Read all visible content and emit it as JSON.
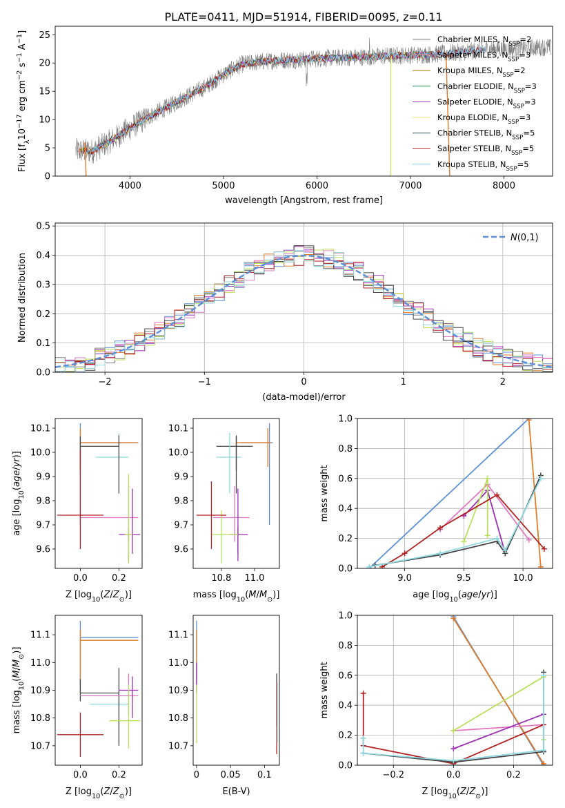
{
  "title": "PLATE=0411, MJD=51914, FIBERID=0095, z=0.11",
  "chart_data": [
    {
      "id": "spectrum",
      "type": "line",
      "xlabel": "wavelength [Angstrom, rest frame]",
      "ylabel": "Flux [f_λ 10^-17 erg cm^-2 s^-1 A^-1]",
      "xlim": [
        3200,
        8520
      ],
      "ylim": [
        0,
        26.5
      ],
      "xticks": [
        4000,
        5000,
        6000,
        7000,
        8000
      ],
      "yticks": [
        0,
        5,
        10,
        15,
        20,
        25
      ],
      "legend": "right",
      "data_color": "#7f7f7f",
      "data_continuum": [
        [
          3420,
          4.5
        ],
        [
          3600,
          4.4
        ],
        [
          3800,
          6.3
        ],
        [
          4000,
          8.5
        ],
        [
          4200,
          10.5
        ],
        [
          4400,
          12.2
        ],
        [
          4600,
          14.0
        ],
        [
          4800,
          15.7
        ],
        [
          5000,
          18.0
        ],
        [
          5200,
          19.8
        ],
        [
          5400,
          20.2
        ],
        [
          5600,
          20.5
        ],
        [
          5800,
          20.6
        ],
        [
          6000,
          20.8
        ],
        [
          6200,
          20.9
        ],
        [
          6400,
          21.0
        ],
        [
          6600,
          21.1
        ],
        [
          6800,
          21.3
        ],
        [
          7000,
          21.4
        ],
        [
          7200,
          21.5
        ],
        [
          7400,
          21.7
        ],
        [
          7600,
          22.0
        ],
        [
          7800,
          22.4
        ],
        [
          8000,
          22.5
        ],
        [
          8200,
          22.6
        ],
        [
          8400,
          22.8
        ],
        [
          8500,
          22.7
        ]
      ],
      "fit_end": [
        7250,
        7400,
        7800
      ],
      "series": [
        {
          "name": "Chabrier MILES, N_SSP=2",
          "color": "#7f7f7f"
        },
        {
          "name": "Salpeter MILES, N_SSP=3",
          "color": "#f08080"
        },
        {
          "name": "Kroupa MILES, N_SSP=2",
          "color": "#b8860b"
        },
        {
          "name": "Chabrier ELODIE, N_SSP=3",
          "color": "#2e8b57"
        },
        {
          "name": "Salpeter ELODIE, N_SSP=3",
          "color": "#9932cc"
        },
        {
          "name": "Kroupa ELODIE, N_SSP=3",
          "color": "#f0e68c"
        },
        {
          "name": "Chabrier STELIB, N_SSP=5",
          "color": "#2f4f4f"
        },
        {
          "name": "Salpeter STELIB, N_SSP=5",
          "color": "#b22222"
        },
        {
          "name": "Kroupa STELIB, N_SSP=5",
          "color": "#87cefa"
        }
      ]
    },
    {
      "id": "residuals",
      "type": "histogram",
      "xlabel": "(data-model)/error",
      "ylabel": "Normed distribution",
      "xlim": [
        -2.5,
        2.5
      ],
      "ylim": [
        0,
        0.51
      ],
      "xticks": [
        -2,
        -1,
        0,
        1,
        2
      ],
      "yticks": [
        0.0,
        0.1,
        0.2,
        0.3,
        0.4,
        0.5
      ],
      "grid": true,
      "legend": "top-right",
      "gaussian_label": "N(0,1)",
      "gaussian_color": "#5b8fd6",
      "bin_width": 0.1,
      "series_colors": [
        "#5b8fd6",
        "#e07b28",
        "#7f7f7f",
        "#9c2fb5",
        "#e377c2",
        "#b8e05a",
        "#444444",
        "#b22222",
        "#8fd9e0"
      ]
    },
    {
      "id": "age_vs_Z",
      "type": "errorbar",
      "xlabel": "Z [log10(Z/Z⊙)]",
      "ylabel": "age [log10(age/yr)]",
      "xlim": [
        -0.13,
        0.32
      ],
      "ylim": [
        9.52,
        10.14
      ],
      "xticks": [
        0.0,
        0.2
      ],
      "yticks": [
        9.6,
        9.7,
        9.8,
        9.9,
        10.0,
        10.1
      ],
      "points": [
        {
          "x": 0.0,
          "y": 10.04,
          "xerr": [
            0.0,
            0.3
          ],
          "yerr": [
            0.34,
            0.08
          ],
          "color": "#5b8fd6"
        },
        {
          "x": 0.0,
          "y": 10.04,
          "xerr": [
            0.0,
            0.3
          ],
          "yerr": [
            0.1,
            0.06
          ],
          "color": "#e07b28"
        },
        {
          "x": 0.0,
          "y": 10.025,
          "xerr": [
            0.0,
            0.2
          ],
          "yerr": [
            0.1,
            0.04
          ],
          "color": "#444444"
        },
        {
          "x": 0.2,
          "y": 9.98,
          "xerr": [
            0.12,
            0.05
          ],
          "yerr": [
            0.15,
            0.1
          ],
          "color": "#8fd9e0"
        },
        {
          "x": 0.2,
          "y": 9.9,
          "xerr": [
            0.0,
            0.0
          ],
          "yerr": [
            0.07,
            0.17
          ],
          "color": "#444444"
        },
        {
          "x": 0.25,
          "y": 9.73,
          "xerr": [
            0.25,
            0.05
          ],
          "yerr": [
            0.1,
            0.13
          ],
          "color": "#e377c2"
        },
        {
          "x": 0.27,
          "y": 9.73,
          "xerr": [
            0.0,
            0.0
          ],
          "yerr": [
            0.15,
            0.12
          ],
          "color": "#9c2fb5"
        },
        {
          "x": 0.25,
          "y": 9.66,
          "xerr": [
            0.05,
            0.06
          ],
          "yerr": [
            0.11,
            0.03
          ],
          "color": "#9c2fb5"
        },
        {
          "x": 0.25,
          "y": 9.66,
          "xerr": [
            0.02,
            0.02
          ],
          "yerr": [
            0.12,
            0.25
          ],
          "color": "#b8e05a"
        },
        {
          "x": 0.0,
          "y": 9.74,
          "xerr": [
            0.12,
            0.12
          ],
          "yerr": [
            0.14,
            0.27
          ],
          "color": "#b22222"
        }
      ]
    },
    {
      "id": "age_vs_mass",
      "type": "errorbar",
      "xlabel": "mass [log10(M/M⊙)]",
      "ylabel": "",
      "xlim": [
        10.63,
        11.15
      ],
      "ylim": [
        9.52,
        10.14
      ],
      "xticks": [
        10.8,
        11.0
      ],
      "yticks": [
        9.6,
        9.7,
        9.8,
        9.9,
        10.0,
        10.1
      ],
      "points": [
        {
          "x": 11.09,
          "y": 10.04,
          "xerr": [
            0.17,
            0.02
          ],
          "yerr": [
            0.34,
            0.08
          ],
          "color": "#5b8fd6"
        },
        {
          "x": 11.08,
          "y": 10.04,
          "xerr": [
            0.19,
            0.02
          ],
          "yerr": [
            0.1,
            0.06
          ],
          "color": "#e07b28"
        },
        {
          "x": 10.89,
          "y": 10.025,
          "xerr": [
            0.12,
            0.1
          ],
          "yerr": [
            0.1,
            0.04
          ],
          "color": "#444444"
        },
        {
          "x": 10.85,
          "y": 9.98,
          "xerr": [
            0.08,
            0.07
          ],
          "yerr": [
            0.15,
            0.1
          ],
          "color": "#8fd9e0"
        },
        {
          "x": 10.89,
          "y": 9.9,
          "xerr": [
            0.0,
            0.0
          ],
          "yerr": [
            0.07,
            0.17
          ],
          "color": "#444444"
        },
        {
          "x": 10.88,
          "y": 9.73,
          "xerr": [
            0.13,
            0.09
          ],
          "yerr": [
            0.1,
            0.13
          ],
          "color": "#e377c2"
        },
        {
          "x": 10.9,
          "y": 9.73,
          "xerr": [
            0.0,
            0.0
          ],
          "yerr": [
            0.15,
            0.12
          ],
          "color": "#9c2fb5"
        },
        {
          "x": 10.9,
          "y": 9.66,
          "xerr": [
            0.05,
            0.06
          ],
          "yerr": [
            0.11,
            0.03
          ],
          "color": "#9c2fb5"
        },
        {
          "x": 10.8,
          "y": 9.66,
          "xerr": [
            0.06,
            0.1
          ],
          "yerr": [
            0.12,
            0.1
          ],
          "color": "#b8e05a"
        },
        {
          "x": 10.74,
          "y": 9.74,
          "xerr": [
            0.09,
            0.09
          ],
          "yerr": [
            0.14,
            0.14
          ],
          "color": "#b22222"
        }
      ]
    },
    {
      "id": "weight_vs_age",
      "type": "line",
      "xlabel": "age [log10(age/yr)]",
      "ylabel": "mass weight",
      "xlim": [
        8.6,
        10.25
      ],
      "ylim": [
        0,
        1
      ],
      "xticks": [
        9.0,
        9.5,
        10.0
      ],
      "yticks": [
        0.0,
        0.2,
        0.4,
        0.6,
        0.8,
        1.0
      ],
      "grid": true,
      "series": [
        {
          "color": "#5b8fd6",
          "points": [
            [
              8.7,
              0.0
            ],
            [
              10.05,
              1.0
            ]
          ]
        },
        {
          "color": "#e07b28",
          "points": [
            [
              10.05,
              0.99
            ],
            [
              10.15,
              0.01
            ]
          ]
        },
        {
          "color": "#e377c2",
          "points": [
            [
              9.3,
              0.26
            ],
            [
              9.7,
              0.56
            ],
            [
              10.05,
              0.19
            ]
          ]
        },
        {
          "color": "#9c2fb5",
          "points": [
            [
              9.5,
              0.35
            ],
            [
              9.7,
              0.52
            ],
            [
              9.85,
              0.1
            ]
          ]
        },
        {
          "color": "#b8e05a",
          "points": [
            [
              9.5,
              0.18
            ],
            [
              9.7,
              0.6
            ],
            [
              9.7,
              0.22
            ]
          ]
        },
        {
          "color": "#b22222",
          "points": [
            [
              8.81,
              0.01
            ],
            [
              9.0,
              0.1
            ],
            [
              9.3,
              0.27
            ],
            [
              9.78,
              0.49
            ],
            [
              10.18,
              0.13
            ]
          ]
        },
        {
          "color": "#444444",
          "points": [
            [
              8.75,
              0.02
            ],
            [
              9.3,
              0.09
            ],
            [
              9.78,
              0.18
            ],
            [
              9.85,
              0.1
            ],
            [
              10.15,
              0.62
            ]
          ]
        },
        {
          "color": "#8fd9e0",
          "points": [
            [
              8.7,
              0.01
            ],
            [
              9.3,
              0.1
            ],
            [
              9.78,
              0.2
            ],
            [
              9.85,
              0.12
            ],
            [
              10.15,
              0.6
            ]
          ]
        }
      ]
    },
    {
      "id": "mass_vs_Z",
      "type": "errorbar",
      "xlabel": "Z [log10(Z/Z⊙)]",
      "ylabel": "mass [log10(M/M⊙)]",
      "xlim": [
        -0.13,
        0.32
      ],
      "ylim": [
        10.63,
        11.17
      ],
      "xticks": [
        0.0,
        0.2
      ],
      "yticks": [
        10.7,
        10.8,
        10.9,
        11.0,
        11.1
      ],
      "points": [
        {
          "x": 0.0,
          "y": 11.09,
          "xerr": [
            0.0,
            0.3
          ],
          "yerr": [
            0.17,
            0.06
          ],
          "color": "#5b8fd6"
        },
        {
          "x": 0.0,
          "y": 11.08,
          "xerr": [
            0.0,
            0.3
          ],
          "yerr": [
            0.19,
            0.04
          ],
          "color": "#e07b28"
        },
        {
          "x": 0.0,
          "y": 10.89,
          "xerr": [
            0.0,
            0.2
          ],
          "yerr": [
            0.03,
            0.05
          ],
          "color": "#444444"
        },
        {
          "x": 0.2,
          "y": 10.85,
          "xerr": [
            0.15,
            0.05
          ],
          "yerr": [
            0.14,
            0.07
          ],
          "color": "#8fd9e0"
        },
        {
          "x": 0.2,
          "y": 10.9,
          "xerr": [
            0.0,
            0.0
          ],
          "yerr": [
            0.2,
            0.08
          ],
          "color": "#444444"
        },
        {
          "x": 0.25,
          "y": 10.88,
          "xerr": [
            0.25,
            0.05
          ],
          "yerr": [
            0.07,
            0.08
          ],
          "color": "#e377c2"
        },
        {
          "x": 0.27,
          "y": 10.9,
          "xerr": [
            0.07,
            0.03
          ],
          "yerr": [
            0.1,
            0.05
          ],
          "color": "#9c2fb5"
        },
        {
          "x": 0.25,
          "y": 10.79,
          "xerr": [
            0.1,
            0.06
          ],
          "yerr": [
            0.1,
            0.13
          ],
          "color": "#b8e05a"
        },
        {
          "x": 0.0,
          "y": 10.74,
          "xerr": [
            0.12,
            0.12
          ],
          "yerr": [
            0.08,
            0.08
          ],
          "color": "#b22222"
        }
      ]
    },
    {
      "id": "mass_vs_EBV",
      "type": "errorbar",
      "xlabel": "E(B-V)",
      "ylabel": "",
      "xlim": [
        -0.005,
        0.122
      ],
      "ylim": [
        10.63,
        11.17
      ],
      "xticks": [
        0.0,
        0.05,
        0.1
      ],
      "yticks": [
        10.7,
        10.8,
        10.9,
        11.0,
        11.1
      ],
      "points": [
        {
          "x": 0.0,
          "y": 11.09,
          "xerr": [
            0.0,
            0.0
          ],
          "yerr": [
            0.17,
            0.06
          ],
          "color": "#5b8fd6"
        },
        {
          "x": 0.0,
          "y": 11.08,
          "xerr": [
            0.0,
            0.0
          ],
          "yerr": [
            0.19,
            0.04
          ],
          "color": "#e07b28"
        },
        {
          "x": 0.0,
          "y": 10.95,
          "xerr": [
            0.0,
            0.0
          ],
          "yerr": [
            0.06,
            0.05
          ],
          "color": "#9c2fb5"
        },
        {
          "x": 0.0,
          "y": 10.8,
          "xerr": [
            0.0,
            0.0
          ],
          "yerr": [
            0.09,
            0.12
          ],
          "color": "#b8e05a"
        },
        {
          "x": 0.118,
          "y": 10.88,
          "xerr": [
            0.0,
            0.0
          ],
          "yerr": [
            0.11,
            0.08
          ],
          "color": "#444444"
        },
        {
          "x": 0.118,
          "y": 10.84,
          "xerr": [
            0.0,
            0.0
          ],
          "yerr": [
            0.17,
            0.09
          ],
          "color": "#b22222"
        },
        {
          "x": 0.119,
          "y": 10.85,
          "xerr": [
            0.0,
            0.0
          ],
          "yerr": [
            0.14,
            0.08
          ],
          "color": "#8fd9e0"
        }
      ]
    },
    {
      "id": "weight_vs_Z",
      "type": "line",
      "xlabel": "Z [log10(Z/Z⊙)]",
      "ylabel": "mass weight",
      "xlim": [
        -0.32,
        0.33
      ],
      "ylim": [
        0,
        1
      ],
      "xticks": [
        -0.2,
        0.0,
        0.2
      ],
      "yticks": [
        0.0,
        0.2,
        0.4,
        0.6,
        0.8,
        1.0
      ],
      "grid": true,
      "series": [
        {
          "color": "#5b8fd6",
          "points": [
            [
              0.0,
              0.99
            ],
            [
              0.3,
              0.0
            ]
          ]
        },
        {
          "color": "#e07b28",
          "points": [
            [
              0.0,
              0.98
            ],
            [
              0.3,
              0.01
            ]
          ]
        },
        {
          "color": "#e377c2",
          "points": [
            [
              0.0,
              0.23
            ],
            [
              0.3,
              0.27
            ]
          ]
        },
        {
          "color": "#9c2fb5",
          "points": [
            [
              0.0,
              0.11
            ],
            [
              0.3,
              0.34
            ]
          ]
        },
        {
          "color": "#b8e05a",
          "points": [
            [
              0.0,
              0.23
            ],
            [
              0.3,
              0.59
            ],
            [
              0.3,
              0.17
            ]
          ]
        },
        {
          "color": "#b22222",
          "points": [
            [
              -0.3,
              0.48
            ],
            [
              -0.3,
              0.13
            ],
            [
              0.0,
              0.01
            ],
            [
              0.3,
              0.27
            ],
            [
              0.3,
              0.09
            ]
          ]
        },
        {
          "color": "#444444",
          "points": [
            [
              -0.3,
              0.08
            ],
            [
              0.0,
              0.02
            ],
            [
              0.3,
              0.09
            ],
            [
              0.3,
              0.62
            ]
          ]
        },
        {
          "color": "#8fd9e0",
          "points": [
            [
              -0.3,
              0.18
            ],
            [
              -0.3,
              0.08
            ],
            [
              0.0,
              0.03
            ],
            [
              0.3,
              0.1
            ],
            [
              0.3,
              0.6
            ]
          ]
        }
      ]
    }
  ]
}
